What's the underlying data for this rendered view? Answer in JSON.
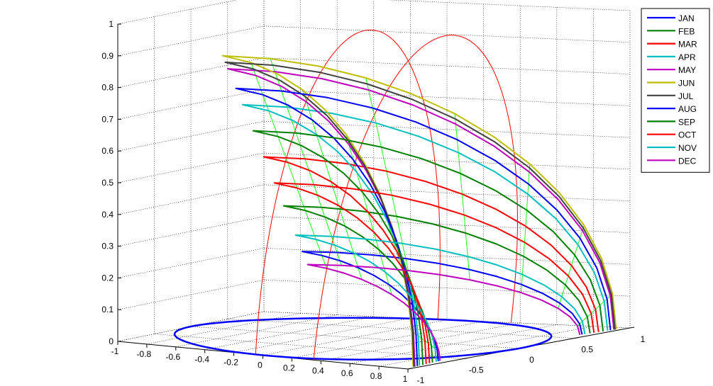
{
  "chart_data": {
    "type": "line",
    "projection": "3d",
    "title": "",
    "xlabel": "",
    "ylabel": "",
    "zlabel": "",
    "xlim": [
      -1,
      1
    ],
    "ylim": [
      -1,
      1
    ],
    "zlim": [
      0,
      1
    ],
    "grid": true,
    "legend_position": "outside-top-right",
    "x_ticks": [
      "-1",
      "-0.8",
      "-0.6",
      "-0.4",
      "-0.2",
      "0",
      "0.2",
      "0.4",
      "0.6",
      "0.8",
      "1"
    ],
    "y_ticks": [
      "-1",
      "-0.5",
      "0",
      "0.5",
      "1"
    ],
    "z_ticks": [
      "0",
      "0.1",
      "0.2",
      "0.3",
      "0.4",
      "0.5",
      "0.6",
      "0.7",
      "0.8",
      "0.9",
      "1"
    ],
    "series": [
      {
        "name": "JAN",
        "color": "#0000ff",
        "max_altitude": 0.26
      },
      {
        "name": "FEB",
        "color": "#008000",
        "max_altitude": 0.4
      },
      {
        "name": "MAR",
        "color": "#ff0000",
        "max_altitude": 0.55
      },
      {
        "name": "APR",
        "color": "#00bfbf",
        "max_altitude": 0.71
      },
      {
        "name": "MAY",
        "color": "#bf00bf",
        "max_altitude": 0.82
      },
      {
        "name": "JUN",
        "color": "#bfbf00",
        "max_altitude": 0.86
      },
      {
        "name": "JUL",
        "color": "#404040",
        "max_altitude": 0.84
      },
      {
        "name": "AUG",
        "color": "#0000ff",
        "max_altitude": 0.76
      },
      {
        "name": "SEP",
        "color": "#008000",
        "max_altitude": 0.63
      },
      {
        "name": "OCT",
        "color": "#ff0000",
        "max_altitude": 0.47
      },
      {
        "name": "NOV",
        "color": "#00bfbf",
        "max_altitude": 0.31
      },
      {
        "name": "DEC",
        "color": "#bf00bf",
        "max_altitude": 0.22
      }
    ],
    "reference_lines": {
      "hour_lines_color": "#00ff00",
      "meridian_color": "#ff0000",
      "horizon_color": "#0000ff"
    }
  }
}
